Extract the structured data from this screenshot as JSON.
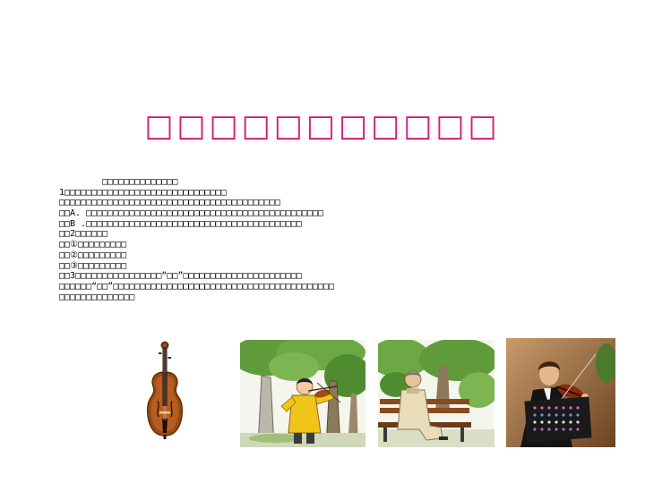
{
  "slide": {
    "title": "□□□□□□□□□□□",
    "text_lines": [
      "        □□□□□□□□□□□□□□",
      "1□□□□□□□□□□□□□□□□□□□□□□□□□□□□□□",
      "□□□□□□□□□□□□□□□□□□□□□□□□□□□□□□□□□□□□□□□□□",
      "□□A. □□□□□□□□□□□□□□□□□□□□□□□□□□□□□□□□□□□□□□□□□□□□",
      "□□B .□□□□□□□□□□□□□□□□□□□□□□□□□□□□□□□□□□□□□□□□",
      "□□2□□□□□□",
      "□□①□□□□□□□□□",
      "□□②□□□□□□□□□",
      "□□③□□□□□□□□□",
      "□□3□□□□□□□□□□□□□□□□“□□”□□□□□□□□□□□□□□□□□□□□□□",
      "□□□□□□“□□”□□□□□□□□□□□□□□□□□□□□□□□□□□□□□□□□□□□□□□□□□",
      "□□□□□□□□□□□□□□"
    ]
  },
  "images": {
    "violin": "violin-illustration",
    "boy_playing": "boy-playing-violin-in-park-illustration",
    "old_man": "old-man-on-bench-illustration",
    "violinist_photo": "violinist-performing-photo"
  }
}
